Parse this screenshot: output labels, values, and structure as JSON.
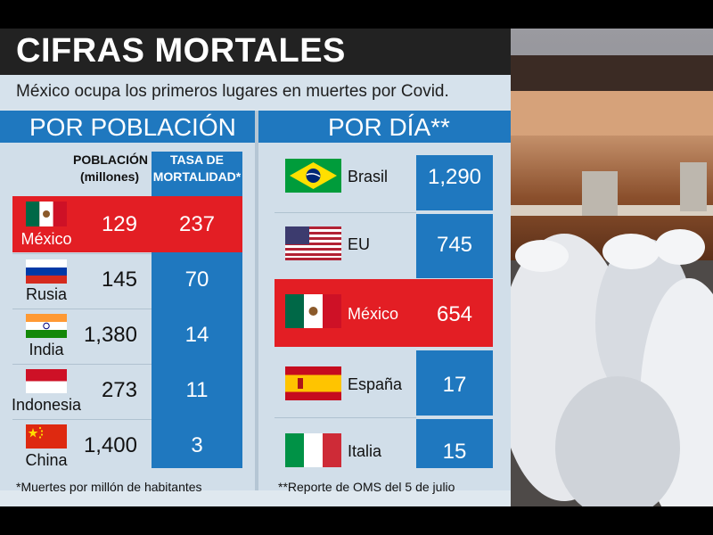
{
  "header": {
    "title": "CIFRAS MORTALES",
    "subtitle": "México ocupa los primeros lugares en muertes por Covid."
  },
  "by_population": {
    "heading": "POR POBLACIÓN",
    "col_population": "POBLACIÓN (millones)",
    "col_rate": "TASA DE MORTALIDAD*",
    "rows": [
      {
        "country": "México",
        "population": "129",
        "rate": "237",
        "highlight": true,
        "flag": "mexico-flag"
      },
      {
        "country": "Rusia",
        "population": "145",
        "rate": "70",
        "highlight": false,
        "flag": "russia-flag"
      },
      {
        "country": "India",
        "population": "1,380",
        "rate": "14",
        "highlight": false,
        "flag": "india-flag"
      },
      {
        "country": "Indonesia",
        "population": "273",
        "rate": "11",
        "highlight": false,
        "flag": "indonesia-flag"
      },
      {
        "country": "China",
        "population": "1,400",
        "rate": "3",
        "highlight": false,
        "flag": "china-flag"
      }
    ],
    "footnote": "*Muertes por millón de habitantes"
  },
  "by_day": {
    "heading": "POR DÍA**",
    "rows": [
      {
        "country": "Brasil",
        "deaths": "1,290",
        "highlight": false,
        "flag": "brazil-flag"
      },
      {
        "country": "EU",
        "deaths": "745",
        "highlight": false,
        "flag": "usa-flag"
      },
      {
        "country": "México",
        "deaths": "654",
        "highlight": true,
        "flag": "mexico-flag"
      },
      {
        "country": "España",
        "deaths": "17",
        "highlight": false,
        "flag": "spain-flag"
      },
      {
        "country": "Italia",
        "deaths": "15",
        "highlight": false,
        "flag": "italy-flag"
      }
    ],
    "footnote": "**Reporte de OMS del 5 de julio"
  },
  "colors": {
    "accent_blue": "#1f78bf",
    "highlight_red": "#e31e24",
    "title_bg": "#222222"
  },
  "photo": {
    "description_icon": "coffin-photo"
  }
}
